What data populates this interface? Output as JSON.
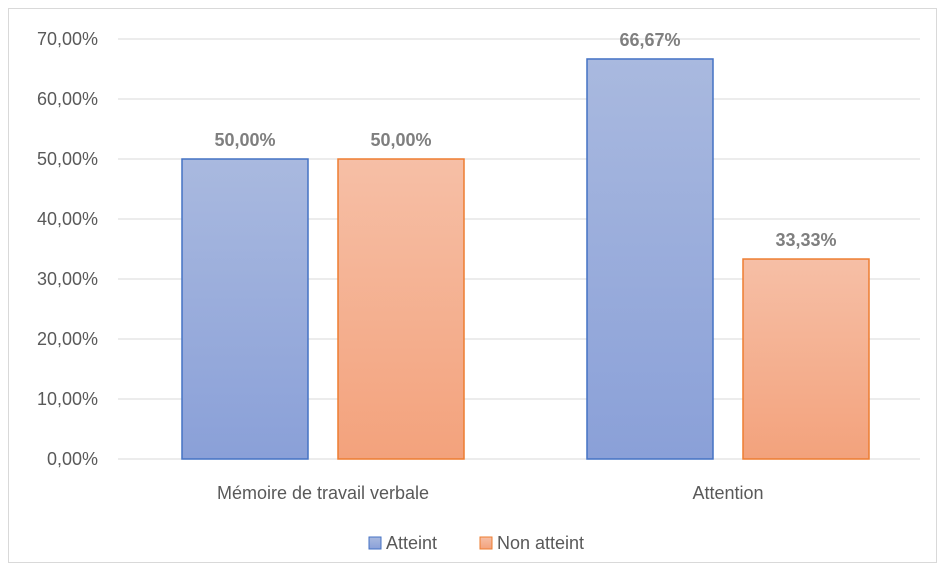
{
  "chart_data": {
    "type": "bar",
    "categories": [
      "Mémoire de travail verbale",
      "Attention"
    ],
    "series": [
      {
        "name": "Atteint",
        "values": [
          50.0,
          66.67
        ],
        "labels": [
          "50,00%",
          "66,67%"
        ],
        "fill_top": "#a9b9df",
        "fill_bottom": "#8aa0d8",
        "stroke": "#4472c4"
      },
      {
        "name": "Non atteint",
        "values": [
          50.0,
          33.33
        ],
        "labels": [
          "50,00%",
          "33,33%"
        ],
        "fill_top": "#f6bfa6",
        "fill_bottom": "#f3a27c",
        "stroke": "#ed7d31"
      }
    ],
    "ylim": [
      0,
      70
    ],
    "yticks": [
      0,
      10,
      20,
      30,
      40,
      50,
      60,
      70
    ],
    "ytick_labels": [
      "0,00%",
      "10,00%",
      "20,00%",
      "30,00%",
      "40,00%",
      "50,00%",
      "60,00%",
      "70,00%"
    ],
    "grid": true,
    "legend_position": "bottom",
    "title": "",
    "xlabel": "",
    "ylabel": ""
  }
}
